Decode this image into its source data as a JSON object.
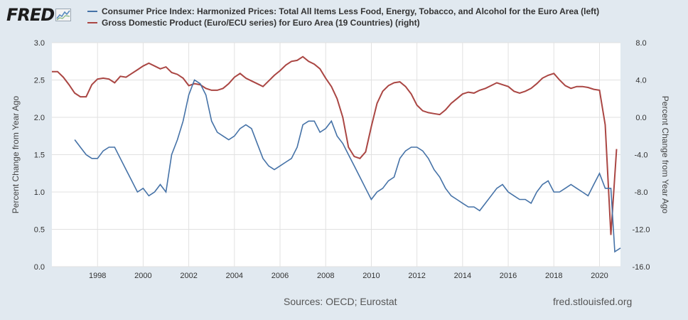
{
  "header": {
    "logo_text": "FRED",
    "legend": [
      {
        "label": "Consumer Price Index: Harmonized Prices: Total All Items Less Food, Energy, Tobacco, and Alcohol for the Euro Area (left)",
        "color": "#4572a7"
      },
      {
        "label": "Gross Domestic Product (Euro/ECU series) for Euro Area (19 Countries) (right)",
        "color": "#aa4643"
      }
    ]
  },
  "footer": {
    "sources": "Sources: OECD; Eurostat",
    "site": "fred.stlouisfed.org"
  },
  "chart_data": {
    "type": "line",
    "title": "",
    "ylabel_left": "Percent Change from Year Ago",
    "ylabel_right": "Percent Change from Year Ago",
    "xlim": [
      1996.0,
      2020.92
    ],
    "ylim_left": [
      0.0,
      3.0
    ],
    "ylim_right": [
      -16.0,
      8.0
    ],
    "x_ticks": [
      1998,
      2000,
      2002,
      2004,
      2006,
      2008,
      2010,
      2012,
      2014,
      2016,
      2018,
      2020
    ],
    "y_ticks_left": [
      "0.0",
      "0.5",
      "1.0",
      "1.5",
      "2.0",
      "2.5",
      "3.0"
    ],
    "y_ticks_right": [
      "-16.0",
      "-12.0",
      "-8.0",
      "-4.0",
      "0.0",
      "4.0",
      "8.0"
    ],
    "grid": true,
    "legend_position": "top",
    "series": [
      {
        "name": "Consumer Price Index: Harmonized Prices: Total All Items Less Food, Energy, Tobacco, and Alcohol for the Euro Area",
        "axis": "left",
        "color": "#4572a7",
        "x": [
          1997.0,
          1997.25,
          1997.5,
          1997.75,
          1998.0,
          1998.25,
          1998.5,
          1998.75,
          1999.0,
          1999.25,
          1999.5,
          1999.75,
          2000.0,
          2000.25,
          2000.5,
          2000.75,
          2001.0,
          2001.25,
          2001.5,
          2001.75,
          2002.0,
          2002.25,
          2002.5,
          2002.75,
          2003.0,
          2003.25,
          2003.5,
          2003.75,
          2004.0,
          2004.25,
          2004.5,
          2004.75,
          2005.0,
          2005.25,
          2005.5,
          2005.75,
          2006.0,
          2006.25,
          2006.5,
          2006.75,
          2007.0,
          2007.25,
          2007.5,
          2007.75,
          2008.0,
          2008.25,
          2008.5,
          2008.75,
          2009.0,
          2009.25,
          2009.5,
          2009.75,
          2010.0,
          2010.25,
          2010.5,
          2010.75,
          2011.0,
          2011.25,
          2011.5,
          2011.75,
          2012.0,
          2012.25,
          2012.5,
          2012.75,
          2013.0,
          2013.25,
          2013.5,
          2013.75,
          2014.0,
          2014.25,
          2014.5,
          2014.75,
          2015.0,
          2015.25,
          2015.5,
          2015.75,
          2016.0,
          2016.25,
          2016.5,
          2016.75,
          2017.0,
          2017.25,
          2017.5,
          2017.75,
          2018.0,
          2018.25,
          2018.5,
          2018.75,
          2019.0,
          2019.25,
          2019.5,
          2019.75,
          2020.0,
          2020.25,
          2020.5,
          2020.67,
          2020.92
        ],
        "y": [
          1.7,
          1.6,
          1.5,
          1.45,
          1.45,
          1.55,
          1.6,
          1.6,
          1.45,
          1.3,
          1.15,
          1.0,
          1.05,
          0.95,
          1.0,
          1.1,
          1.0,
          1.5,
          1.7,
          1.95,
          2.3,
          2.5,
          2.45,
          2.3,
          1.95,
          1.8,
          1.75,
          1.7,
          1.75,
          1.85,
          1.9,
          1.85,
          1.65,
          1.45,
          1.35,
          1.3,
          1.35,
          1.4,
          1.45,
          1.6,
          1.9,
          1.95,
          1.95,
          1.8,
          1.85,
          1.95,
          1.75,
          1.65,
          1.5,
          1.35,
          1.2,
          1.05,
          0.9,
          1.0,
          1.05,
          1.15,
          1.2,
          1.45,
          1.55,
          1.6,
          1.6,
          1.55,
          1.45,
          1.3,
          1.2,
          1.05,
          0.95,
          0.9,
          0.85,
          0.8,
          0.8,
          0.75,
          0.85,
          0.95,
          1.05,
          1.1,
          1.0,
          0.95,
          0.9,
          0.9,
          0.85,
          1.0,
          1.1,
          1.15,
          1.0,
          1.0,
          1.05,
          1.1,
          1.05,
          1.0,
          0.95,
          1.1,
          1.25,
          1.05,
          1.05,
          0.2,
          0.25
        ]
      },
      {
        "name": "Gross Domestic Product (Euro/ECU series) for Euro Area (19 Countries)",
        "axis": "right",
        "color": "#aa4643",
        "x": [
          1996.0,
          1996.25,
          1996.5,
          1996.75,
          1997.0,
          1997.25,
          1997.5,
          1997.75,
          1998.0,
          1998.25,
          1998.5,
          1998.75,
          1999.0,
          1999.25,
          1999.5,
          1999.75,
          2000.0,
          2000.25,
          2000.5,
          2000.75,
          2001.0,
          2001.25,
          2001.5,
          2001.75,
          2002.0,
          2002.25,
          2002.5,
          2002.75,
          2003.0,
          2003.25,
          2003.5,
          2003.75,
          2004.0,
          2004.25,
          2004.5,
          2004.75,
          2005.0,
          2005.25,
          2005.5,
          2005.75,
          2006.0,
          2006.25,
          2006.5,
          2006.75,
          2007.0,
          2007.25,
          2007.5,
          2007.75,
          2008.0,
          2008.25,
          2008.5,
          2008.75,
          2009.0,
          2009.25,
          2009.5,
          2009.75,
          2010.0,
          2010.25,
          2010.5,
          2010.75,
          2011.0,
          2011.25,
          2011.5,
          2011.75,
          2012.0,
          2012.25,
          2012.5,
          2012.75,
          2013.0,
          2013.25,
          2013.5,
          2013.75,
          2014.0,
          2014.25,
          2014.5,
          2014.75,
          2015.0,
          2015.25,
          2015.5,
          2015.75,
          2016.0,
          2016.25,
          2016.5,
          2016.75,
          2017.0,
          2017.25,
          2017.5,
          2017.75,
          2018.0,
          2018.25,
          2018.5,
          2018.75,
          2019.0,
          2019.25,
          2019.5,
          2019.75,
          2020.0,
          2020.25,
          2020.5,
          2020.75
        ],
        "y": [
          4.9,
          4.9,
          4.3,
          3.5,
          2.6,
          2.2,
          2.2,
          3.5,
          4.1,
          4.2,
          4.1,
          3.7,
          4.4,
          4.3,
          4.7,
          5.1,
          5.5,
          5.8,
          5.5,
          5.2,
          5.4,
          4.8,
          4.6,
          4.2,
          3.4,
          3.6,
          3.5,
          3.1,
          2.9,
          2.9,
          3.1,
          3.6,
          4.3,
          4.7,
          4.2,
          3.9,
          3.6,
          3.3,
          3.9,
          4.5,
          5.0,
          5.6,
          6.0,
          6.1,
          6.5,
          6.0,
          5.7,
          5.2,
          4.2,
          3.3,
          2.0,
          0.0,
          -3.2,
          -4.2,
          -4.4,
          -3.7,
          -1.0,
          1.5,
          2.8,
          3.4,
          3.7,
          3.8,
          3.3,
          2.5,
          1.3,
          0.7,
          0.5,
          0.4,
          0.3,
          0.8,
          1.5,
          2.0,
          2.5,
          2.7,
          2.6,
          2.9,
          3.1,
          3.4,
          3.7,
          3.5,
          3.3,
          2.8,
          2.6,
          2.8,
          3.1,
          3.6,
          4.2,
          4.5,
          4.7,
          4.0,
          3.4,
          3.1,
          3.3,
          3.3,
          3.2,
          3.0,
          2.9,
          -0.8,
          -12.6,
          -3.4
        ]
      }
    ]
  }
}
